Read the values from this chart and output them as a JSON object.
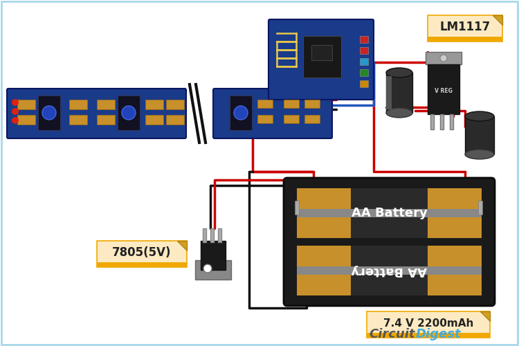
{
  "bg_color": "#ffffff",
  "border_color": "#a8d8ea",
  "led_strip_color": "#1a3a8a",
  "esp_board_color": "#1a3a8a",
  "wire_red": "#cc0000",
  "wire_black": "#111111",
  "wire_blue": "#2255bb",
  "label_bg": "#fdeac2",
  "label_border": "#f0a800",
  "label_text": "#222222",
  "cd_gray": "#555555",
  "cd_blue": "#44aadd",
  "lm1117_label": "LM1117",
  "v7805_label": "7805(5V)",
  "battery_label": "7.4 V 2200mAh",
  "aa_text": "AA Battery",
  "battery_gold": "#c8902a",
  "battery_dark": "#222222",
  "cap_dark": "#2a2a2a",
  "ic_dark": "#1a1a1a",
  "metal_gray": "#888888",
  "pin_gray": "#aaaaaa"
}
